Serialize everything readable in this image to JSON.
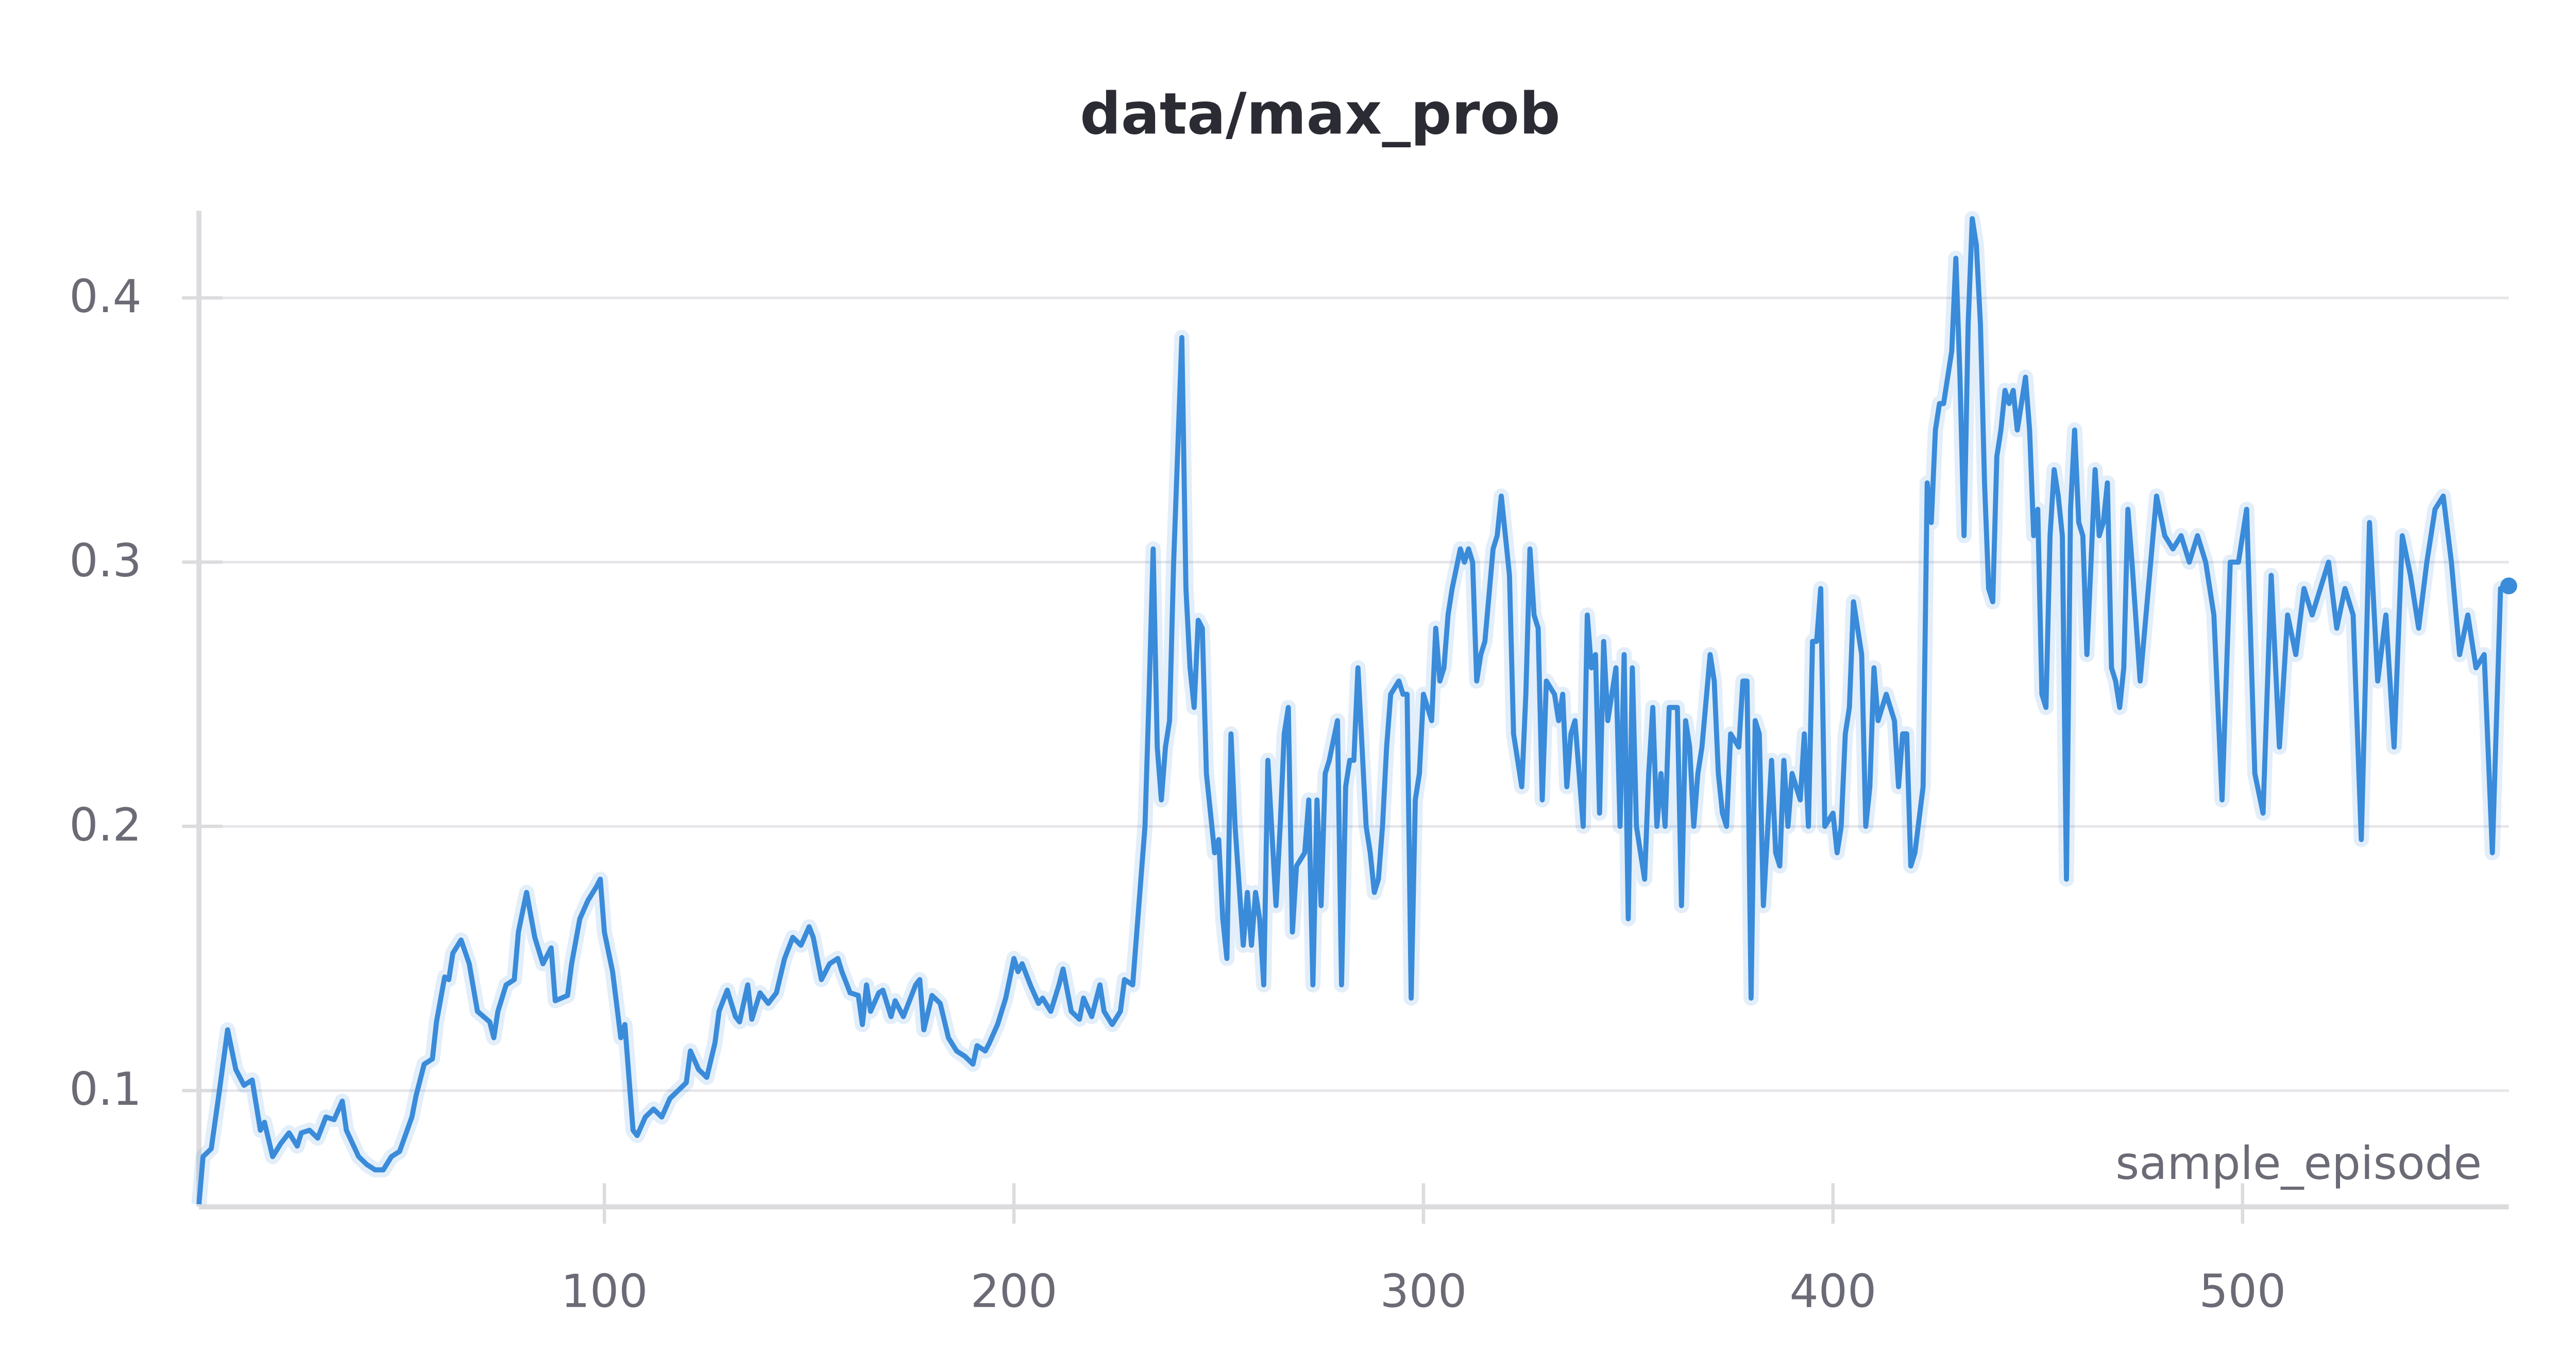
{
  "chart_data": {
    "type": "line",
    "title": "data/max_prob",
    "x_label": "sample_episode",
    "color": "#3a8bd9",
    "grid": true,
    "xlim": [
      1,
      565
    ],
    "ylim": [
      0.056,
      0.433
    ],
    "xticks": [
      100,
      200,
      300,
      400,
      500
    ],
    "yticks": [
      0.1,
      0.2,
      0.3,
      0.4
    ],
    "x": [
      1,
      2,
      4,
      6,
      8,
      10,
      12,
      14,
      16,
      17,
      19,
      21,
      23,
      25,
      26,
      28,
      30,
      32,
      34,
      36,
      37,
      40,
      42,
      44,
      46,
      48,
      50,
      53,
      54,
      56,
      58,
      59,
      61,
      62,
      63,
      65,
      67,
      69,
      72,
      73,
      74,
      76,
      78,
      79,
      81,
      83,
      85,
      87,
      88,
      91,
      92,
      94,
      96,
      98,
      99,
      100,
      102,
      104,
      105,
      107,
      108,
      110,
      112,
      114,
      116,
      118,
      120,
      121,
      123,
      125,
      127,
      128,
      130,
      132,
      133,
      135,
      136,
      138,
      140,
      142,
      144,
      146,
      148,
      150,
      151,
      153,
      155,
      157,
      158,
      160,
      162,
      163,
      164,
      165,
      167,
      168,
      170,
      171,
      173,
      174,
      176,
      177,
      178,
      180,
      182,
      184,
      186,
      188,
      190,
      191,
      193,
      194,
      196,
      198,
      200,
      201,
      202,
      204,
      206,
      207,
      209,
      211,
      212,
      214,
      216,
      217,
      219,
      221,
      222,
      224,
      226,
      227,
      229,
      230,
      232,
      233,
      234,
      235,
      236,
      237,
      238,
      239,
      241,
      242,
      243,
      244,
      245,
      246,
      247,
      249,
      250,
      251,
      252,
      253,
      254,
      256,
      257,
      258,
      259,
      260,
      261,
      262,
      264,
      265,
      266,
      267,
      268,
      269,
      271,
      272,
      273,
      274,
      275,
      276,
      277,
      279,
      280,
      281,
      282,
      283,
      284,
      286,
      287,
      288,
      289,
      290,
      291,
      292,
      294,
      295,
      296,
      297,
      298,
      299,
      300,
      302,
      303,
      304,
      305,
      306,
      307,
      309,
      310,
      311,
      312,
      313,
      314,
      315,
      317,
      318,
      319,
      320,
      321,
      322,
      324,
      325,
      326,
      327,
      328,
      329,
      330,
      332,
      333,
      334,
      335,
      336,
      337,
      339,
      340,
      341,
      342,
      343,
      344,
      345,
      347,
      348,
      349,
      350,
      351,
      352,
      354,
      355,
      356,
      357,
      358,
      359,
      360,
      362,
      363,
      364,
      365,
      366,
      367,
      368,
      370,
      371,
      372,
      373,
      374,
      375,
      377,
      378,
      379,
      380,
      381,
      382,
      383,
      385,
      386,
      387,
      388,
      389,
      390,
      392,
      393,
      394,
      395,
      396,
      397,
      398,
      400,
      401,
      402,
      403,
      404,
      405,
      407,
      408,
      409,
      410,
      411,
      412,
      413,
      415,
      416,
      417,
      418,
      419,
      420,
      422,
      423,
      424,
      425,
      426,
      427,
      428,
      429,
      430,
      431,
      432,
      433,
      434,
      435,
      436,
      437,
      438,
      439,
      440,
      441,
      442,
      443,
      444,
      445,
      446,
      447,
      448,
      449,
      450,
      451,
      452,
      453,
      454,
      455,
      456,
      457,
      458,
      459,
      460,
      461,
      462,
      463,
      464,
      465,
      466,
      467,
      468,
      469,
      470,
      471,
      472,
      473,
      475,
      477,
      479,
      481,
      483,
      485,
      487,
      489,
      491,
      493,
      495,
      497,
      499,
      501,
      503,
      505,
      507,
      509,
      511,
      513,
      515,
      517,
      519,
      521,
      523,
      525,
      527,
      529,
      531,
      533,
      535,
      537,
      539,
      541,
      543,
      545,
      547,
      549,
      551,
      553,
      555,
      557,
      559,
      561,
      563,
      565
    ],
    "values": [
      0.057,
      0.075,
      0.078,
      0.1,
      0.123,
      0.108,
      0.102,
      0.104,
      0.085,
      0.088,
      0.075,
      0.08,
      0.084,
      0.079,
      0.084,
      0.085,
      0.082,
      0.09,
      0.089,
      0.096,
      0.085,
      0.075,
      0.072,
      0.07,
      0.07,
      0.075,
      0.077,
      0.09,
      0.098,
      0.11,
      0.112,
      0.126,
      0.143,
      0.142,
      0.152,
      0.157,
      0.148,
      0.13,
      0.126,
      0.12,
      0.13,
      0.14,
      0.142,
      0.16,
      0.175,
      0.158,
      0.148,
      0.154,
      0.134,
      0.136,
      0.148,
      0.165,
      0.172,
      0.177,
      0.18,
      0.16,
      0.145,
      0.12,
      0.125,
      0.085,
      0.083,
      0.09,
      0.093,
      0.09,
      0.097,
      0.1,
      0.103,
      0.115,
      0.108,
      0.105,
      0.118,
      0.13,
      0.138,
      0.128,
      0.126,
      0.14,
      0.127,
      0.137,
      0.133,
      0.137,
      0.15,
      0.158,
      0.155,
      0.162,
      0.158,
      0.142,
      0.148,
      0.15,
      0.145,
      0.137,
      0.136,
      0.125,
      0.14,
      0.13,
      0.137,
      0.138,
      0.128,
      0.134,
      0.128,
      0.132,
      0.14,
      0.142,
      0.123,
      0.136,
      0.133,
      0.12,
      0.115,
      0.113,
      0.11,
      0.117,
      0.115,
      0.118,
      0.125,
      0.135,
      0.15,
      0.145,
      0.148,
      0.14,
      0.133,
      0.135,
      0.13,
      0.14,
      0.146,
      0.13,
      0.127,
      0.135,
      0.128,
      0.14,
      0.13,
      0.125,
      0.13,
      0.142,
      0.14,
      0.16,
      0.2,
      0.25,
      0.305,
      0.23,
      0.21,
      0.23,
      0.24,
      0.3,
      0.385,
      0.29,
      0.26,
      0.245,
      0.278,
      0.275,
      0.22,
      0.19,
      0.195,
      0.165,
      0.15,
      0.235,
      0.2,
      0.155,
      0.175,
      0.155,
      0.175,
      0.165,
      0.14,
      0.225,
      0.17,
      0.2,
      0.235,
      0.245,
      0.16,
      0.185,
      0.19,
      0.21,
      0.14,
      0.21,
      0.17,
      0.22,
      0.225,
      0.24,
      0.14,
      0.215,
      0.225,
      0.225,
      0.26,
      0.2,
      0.19,
      0.175,
      0.18,
      0.2,
      0.23,
      0.25,
      0.255,
      0.25,
      0.25,
      0.135,
      0.21,
      0.22,
      0.25,
      0.24,
      0.275,
      0.255,
      0.26,
      0.28,
      0.29,
      0.305,
      0.3,
      0.305,
      0.3,
      0.255,
      0.265,
      0.27,
      0.305,
      0.31,
      0.325,
      0.31,
      0.295,
      0.235,
      0.215,
      0.25,
      0.305,
      0.28,
      0.275,
      0.21,
      0.255,
      0.25,
      0.24,
      0.25,
      0.215,
      0.235,
      0.24,
      0.2,
      0.28,
      0.26,
      0.265,
      0.205,
      0.27,
      0.24,
      0.26,
      0.2,
      0.265,
      0.165,
      0.26,
      0.2,
      0.18,
      0.22,
      0.245,
      0.2,
      0.22,
      0.2,
      0.245,
      0.245,
      0.17,
      0.24,
      0.23,
      0.2,
      0.22,
      0.23,
      0.265,
      0.255,
      0.22,
      0.205,
      0.2,
      0.235,
      0.23,
      0.255,
      0.255,
      0.135,
      0.24,
      0.235,
      0.17,
      0.225,
      0.19,
      0.185,
      0.225,
      0.2,
      0.22,
      0.21,
      0.235,
      0.2,
      0.27,
      0.27,
      0.29,
      0.2,
      0.205,
      0.19,
      0.2,
      0.235,
      0.245,
      0.285,
      0.265,
      0.2,
      0.215,
      0.26,
      0.24,
      0.245,
      0.25,
      0.24,
      0.215,
      0.235,
      0.235,
      0.185,
      0.19,
      0.215,
      0.33,
      0.315,
      0.35,
      0.36,
      0.36,
      0.37,
      0.38,
      0.415,
      0.37,
      0.31,
      0.39,
      0.43,
      0.42,
      0.39,
      0.33,
      0.29,
      0.285,
      0.34,
      0.35,
      0.365,
      0.36,
      0.365,
      0.35,
      0.36,
      0.37,
      0.35,
      0.31,
      0.32,
      0.25,
      0.245,
      0.31,
      0.335,
      0.325,
      0.31,
      0.18,
      0.32,
      0.35,
      0.315,
      0.31,
      0.265,
      0.3,
      0.335,
      0.31,
      0.315,
      0.33,
      0.26,
      0.255,
      0.245,
      0.26,
      0.32,
      0.3,
      0.255,
      0.29,
      0.325,
      0.31,
      0.305,
      0.31,
      0.3,
      0.31,
      0.3,
      0.28,
      0.21,
      0.3,
      0.3,
      0.32,
      0.22,
      0.205,
      0.295,
      0.23,
      0.28,
      0.265,
      0.29,
      0.28,
      0.29,
      0.3,
      0.275,
      0.29,
      0.28,
      0.195,
      0.315,
      0.255,
      0.28,
      0.23,
      0.31,
      0.295,
      0.275,
      0.3,
      0.32,
      0.325,
      0.3,
      0.265,
      0.28,
      0.26,
      0.265,
      0.19,
      0.29,
      0.291
    ]
  }
}
